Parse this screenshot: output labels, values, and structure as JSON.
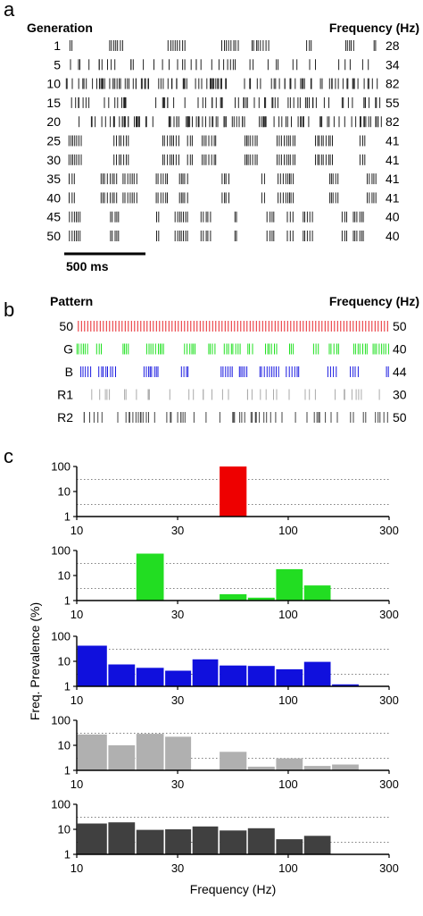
{
  "panels": {
    "a_letter": "a",
    "b_letter": "b",
    "c_letter": "c"
  },
  "panel_a": {
    "left_header": "Generation",
    "right_header": "Frequency (Hz)",
    "scalebar_label": "500 ms",
    "rows": [
      {
        "label": "1",
        "freq": "28",
        "density": 28,
        "seed": 11,
        "bursty": true
      },
      {
        "label": "5",
        "freq": "34",
        "density": 34,
        "seed": 23,
        "bursty": false
      },
      {
        "label": "10",
        "freq": "82",
        "density": 82,
        "seed": 37,
        "bursty": false
      },
      {
        "label": "15",
        "freq": "55",
        "density": 55,
        "seed": 41,
        "bursty": false
      },
      {
        "label": "20",
        "freq": "82",
        "density": 82,
        "seed": 53,
        "bursty": false
      },
      {
        "label": "25",
        "freq": "41",
        "density": 41,
        "seed": 67,
        "bursty": true
      },
      {
        "label": "30",
        "freq": "41",
        "density": 41,
        "seed": 67,
        "bursty": true
      },
      {
        "label": "35",
        "freq": "41",
        "density": 41,
        "seed": 79,
        "bursty": true
      },
      {
        "label": "40",
        "freq": "41",
        "density": 41,
        "seed": 79,
        "bursty": true
      },
      {
        "label": "45",
        "freq": "40",
        "density": 40,
        "seed": 97,
        "bursty": true
      },
      {
        "label": "50",
        "freq": "40",
        "density": 40,
        "seed": 97,
        "bursty": true
      }
    ]
  },
  "panel_b": {
    "left_header": "Pattern",
    "right_header": "Frequency (Hz)",
    "rows": [
      {
        "label": "50",
        "freq": "50",
        "color": "#e8242a",
        "density": 100,
        "seed": 0,
        "bursty": false,
        "regular": true
      },
      {
        "label": "G",
        "freq": "40",
        "color": "#1fe01f",
        "density": 80,
        "seed": 131,
        "bursty": true,
        "regular": false
      },
      {
        "label": "B",
        "freq": "44",
        "color": "#1a1ae0",
        "density": 44,
        "seed": 151,
        "bursty": true,
        "regular": false
      },
      {
        "label": "R1",
        "freq": "30",
        "color": "#aaaaaa",
        "density": 30,
        "seed": 173,
        "bursty": false,
        "regular": false
      },
      {
        "label": "R2",
        "freq": "50",
        "color": "#444444",
        "density": 50,
        "seed": 191,
        "bursty": false,
        "regular": false
      }
    ]
  },
  "chart_data": {
    "type": "bar",
    "ylabel": "Freq. Prevalence (%)",
    "xlabel": "Frequency (Hz)",
    "x_scale": "log",
    "y_scale": "log",
    "xlim": [
      10,
      300
    ],
    "ylim": [
      1,
      100
    ],
    "x_ticks": [
      "10",
      "30",
      "100",
      "300"
    ],
    "y_ticks": [
      "1",
      "10",
      "100"
    ],
    "bin_edges": [
      10,
      14,
      19,
      26,
      35,
      47,
      64,
      87,
      118,
      160,
      217,
      295
    ],
    "series": [
      {
        "color": "#ee0000",
        "values": [
          0,
          0,
          0,
          0,
          0,
          100,
          0,
          0,
          0,
          0,
          0
        ]
      },
      {
        "color": "#22dd22",
        "values": [
          0,
          0,
          75,
          0,
          0,
          1.8,
          1.3,
          18,
          4,
          0,
          0
        ]
      },
      {
        "color": "#1010dd",
        "values": [
          42,
          7.5,
          5.5,
          4.2,
          12,
          6.8,
          6.5,
          4.8,
          9.5,
          1.2,
          0
        ]
      },
      {
        "color": "#b0b0b0",
        "values": [
          27,
          10,
          29,
          22,
          0,
          5.5,
          1.4,
          3,
          1.5,
          1.7,
          0
        ]
      },
      {
        "color": "#404040",
        "values": [
          17,
          19,
          9.5,
          10,
          13,
          9,
          11,
          4,
          5.5,
          0,
          0
        ]
      }
    ]
  }
}
